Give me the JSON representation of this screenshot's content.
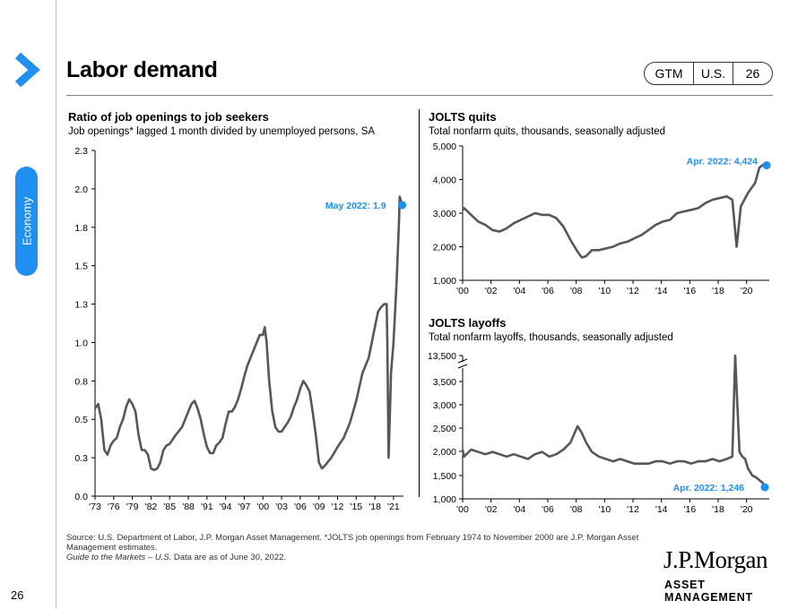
{
  "header": {
    "title": "Labor demand",
    "section": "Economy",
    "tags": [
      "GTM",
      "U.S.",
      "26"
    ]
  },
  "page_number": "26",
  "footnote": {
    "source": "Source: U.S. Department of Labor, J.P. Morgan Asset Management. *JOLTS job openings from February 1974 to November 2000 are J.P. Morgan Asset Management estimates.",
    "guide_italic": "Guide to the Markets – U.S.",
    "date_text": " Data are as of June 30, 2022."
  },
  "logo": {
    "name": "J.P.Morgan",
    "tagline": "ASSET MANAGEMENT"
  },
  "colors": {
    "line": "#575757",
    "accent": "#1f8ff0",
    "annotation": "#1f8ff0"
  },
  "chart_data": [
    {
      "type": "line",
      "title": "Ratio of job openings to job seekers",
      "subtitle": "Job openings* lagged 1 month divided by unemployed persons, SA",
      "ylim": [
        0,
        2.3
      ],
      "y_ticks": [
        "0.0",
        "0.3",
        "0.5",
        "0.8",
        "1.0",
        "1.3",
        "1.5",
        "1.8",
        "2.0",
        "2.3"
      ],
      "x_ticks": [
        "'73",
        "'76",
        "'79",
        "'82",
        "'85",
        "'88",
        "'91",
        "'94",
        "'97",
        "'00",
        "'03",
        "'06",
        "'09",
        "'12",
        "'15",
        "'18",
        "'21"
      ],
      "annotation": "May 2022: 1.9",
      "series": [
        {
          "x": [
            1973.0,
            1973.5,
            1974.0,
            1974.5,
            1975.0,
            1975.5,
            1976.0,
            1976.5,
            1977.0,
            1977.5,
            1978.0,
            1978.5,
            1979.0,
            1979.5,
            1980.0,
            1980.5,
            1981.0,
            1981.5,
            1982.0,
            1982.5,
            1983.0,
            1983.5,
            1984.0,
            1984.5,
            1985.0,
            1986.0,
            1987.0,
            1988.0,
            1988.5,
            1989.0,
            1989.5,
            1990.0,
            1990.5,
            1991.0,
            1991.5,
            1992.0,
            1992.5,
            1993.0,
            1993.5,
            1994.0,
            1994.5,
            1995.0,
            1995.5,
            1996.0,
            1996.5,
            1997.0,
            1997.5,
            1998.0,
            1998.5,
            1999.0,
            1999.5,
            2000.0,
            2000.3,
            2000.6,
            2001.0,
            2001.5,
            2002.0,
            2002.5,
            2003.0,
            2003.5,
            2004.0,
            2004.5,
            2005.0,
            2005.5,
            2006.0,
            2006.5,
            2007.0,
            2007.5,
            2008.0,
            2008.5,
            2009.0,
            2009.5,
            2010.0,
            2011.0,
            2012.0,
            2013.0,
            2014.0,
            2015.0,
            2016.0,
            2017.0,
            2018.0,
            2018.5,
            2019.0,
            2019.5,
            2019.9,
            2020.0,
            2020.2,
            2020.4,
            2020.6,
            2021.0,
            2021.5,
            2021.9,
            2022.0,
            2022.2,
            2022.4
          ],
          "values": [
            0.57,
            0.6,
            0.5,
            0.3,
            0.27,
            0.33,
            0.36,
            0.38,
            0.45,
            0.5,
            0.58,
            0.63,
            0.6,
            0.55,
            0.4,
            0.3,
            0.3,
            0.27,
            0.18,
            0.17,
            0.18,
            0.22,
            0.3,
            0.33,
            0.34,
            0.4,
            0.45,
            0.55,
            0.6,
            0.62,
            0.57,
            0.5,
            0.4,
            0.32,
            0.28,
            0.28,
            0.33,
            0.35,
            0.38,
            0.47,
            0.55,
            0.55,
            0.58,
            0.63,
            0.7,
            0.78,
            0.85,
            0.9,
            0.95,
            1.0,
            1.05,
            1.05,
            1.1,
            1.0,
            0.75,
            0.55,
            0.45,
            0.42,
            0.42,
            0.45,
            0.48,
            0.52,
            0.58,
            0.63,
            0.7,
            0.75,
            0.72,
            0.68,
            0.55,
            0.4,
            0.22,
            0.18,
            0.2,
            0.25,
            0.32,
            0.38,
            0.48,
            0.62,
            0.8,
            0.9,
            1.1,
            1.2,
            1.23,
            1.25,
            1.25,
            1.0,
            0.25,
            0.5,
            0.8,
            1.0,
            1.4,
            1.8,
            1.95,
            1.92,
            1.9
          ]
        }
      ]
    },
    {
      "type": "line",
      "title": "JOLTS quits",
      "subtitle": "Total nonfarm quits, thousands, seasonally adjusted",
      "ylim": [
        1000,
        5000
      ],
      "y_ticks": [
        "1,000",
        "2,000",
        "3,000",
        "4,000",
        "5,000"
      ],
      "x_ticks": [
        "'00",
        "'02",
        "'04",
        "'06",
        "'08",
        "'10",
        "'12",
        "'14",
        "'16",
        "'18",
        "'20"
      ],
      "annotation": "Apr. 2022: 4,424",
      "series": [
        {
          "x": [
            2000.9,
            2001.0,
            2001.5,
            2002.0,
            2002.5,
            2003.0,
            2003.5,
            2004.0,
            2004.5,
            2005.0,
            2005.5,
            2006.0,
            2006.5,
            2007.0,
            2007.5,
            2008.0,
            2008.5,
            2009.0,
            2009.3,
            2009.6,
            2010.0,
            2010.5,
            2011.0,
            2011.5,
            2012.0,
            2012.5,
            2013.0,
            2013.5,
            2014.0,
            2014.5,
            2015.0,
            2015.5,
            2016.0,
            2016.5,
            2017.0,
            2017.5,
            2018.0,
            2018.5,
            2019.0,
            2019.5,
            2019.9,
            2020.2,
            2020.5,
            2021.0,
            2021.5,
            2021.8,
            2022.0,
            2022.3
          ],
          "values": [
            3100,
            3150,
            2950,
            2750,
            2650,
            2500,
            2450,
            2550,
            2700,
            2800,
            2900,
            3000,
            2950,
            2950,
            2850,
            2600,
            2200,
            1850,
            1680,
            1720,
            1900,
            1900,
            1950,
            2000,
            2100,
            2150,
            2250,
            2350,
            2500,
            2650,
            2750,
            2800,
            3000,
            3050,
            3100,
            3150,
            3300,
            3400,
            3450,
            3500,
            3400,
            2000,
            3200,
            3600,
            3900,
            4350,
            4424,
            4424
          ]
        }
      ]
    },
    {
      "type": "line",
      "title": "JOLTS layoffs",
      "subtitle": "Total nonfarm layoffs, thousands, seasonally adjusted",
      "ylim": [
        1000,
        13500
      ],
      "y_ticks": [
        "1,000",
        "1,500",
        "2,000",
        "2,500",
        "3,000",
        "3,500",
        "13,500"
      ],
      "axis_break": true,
      "x_ticks": [
        "'00",
        "'02",
        "'04",
        "'06",
        "'08",
        "'10",
        "'12",
        "'14",
        "'16",
        "'18",
        "'20"
      ],
      "annotation": "Apr. 2022: 1,246",
      "series": [
        {
          "x": [
            2000.9,
            2001.0,
            2001.5,
            2002.0,
            2002.5,
            2003.0,
            2003.5,
            2004.0,
            2004.5,
            2005.0,
            2005.5,
            2006.0,
            2006.5,
            2007.0,
            2007.5,
            2008.0,
            2008.5,
            2009.0,
            2009.3,
            2009.6,
            2010.0,
            2010.5,
            2011.0,
            2011.5,
            2012.0,
            2012.5,
            2013.0,
            2013.5,
            2014.0,
            2014.5,
            2015.0,
            2015.5,
            2016.0,
            2016.5,
            2017.0,
            2017.5,
            2018.0,
            2018.5,
            2019.0,
            2019.5,
            2019.9,
            2020.1,
            2020.25,
            2020.4,
            2020.6,
            2020.8,
            2021.0,
            2021.3,
            2021.6,
            2022.0,
            2022.3
          ],
          "values": [
            2050,
            1900,
            2050,
            2000,
            1950,
            2000,
            1950,
            1900,
            1950,
            1900,
            1850,
            1950,
            2000,
            1900,
            1950,
            2050,
            2200,
            2550,
            2400,
            2200,
            2000,
            1900,
            1850,
            1800,
            1850,
            1800,
            1750,
            1750,
            1750,
            1800,
            1800,
            1750,
            1800,
            1800,
            1750,
            1800,
            1800,
            1850,
            1800,
            1850,
            1900,
            13500,
            3000,
            2000,
            1900,
            1850,
            1650,
            1500,
            1450,
            1350,
            1246
          ]
        }
      ]
    }
  ]
}
